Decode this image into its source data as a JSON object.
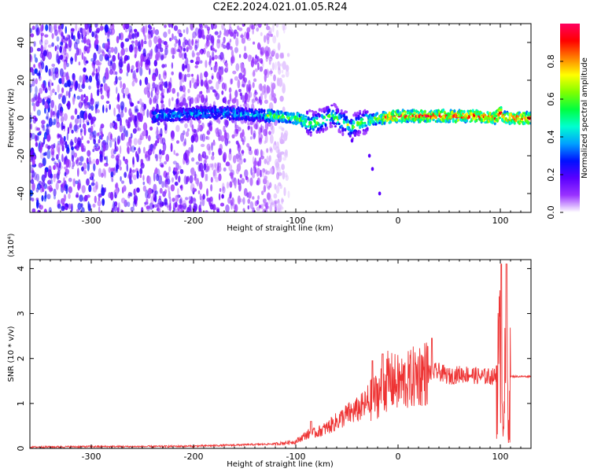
{
  "title": "C2E2.2024.021.01.05.R24",
  "chart_data": [
    {
      "type": "heatmap",
      "xlabel": "Height of straight line (km)",
      "ylabel": "Frequency (Hz)",
      "xlim": [
        -360,
        130
      ],
      "ylim": [
        -50,
        50
      ],
      "xticks": [
        "-300",
        "-200",
        "-100",
        "0",
        "100"
      ],
      "yticks": [
        "-40",
        "-20",
        "0",
        "20",
        "40"
      ],
      "colorbar": {
        "label": "Normalized spectral amplitude",
        "range": [
          0.0,
          1.0
        ],
        "ticks": [
          "0.0",
          "0.2",
          "0.4",
          "0.6",
          "0.8"
        ],
        "colors": [
          "#ffffff",
          "#9a33ff",
          "#5a00ff",
          "#0010ff",
          "#00a0ff",
          "#00ffd0",
          "#00ff40",
          "#80ff00",
          "#ffff00",
          "#ff8000",
          "#ff0000",
          "#ff0060"
        ]
      },
      "band": {
        "x": [
          -240,
          -210,
          -180,
          -150,
          -120,
          -100,
          -85,
          -75,
          -65,
          -55,
          -45,
          -35,
          -25,
          -15,
          0,
          20,
          40,
          60,
          80,
          95,
          100,
          105,
          130
        ],
        "y": [
          1,
          2,
          3,
          2,
          1,
          0,
          -3,
          -2,
          2,
          -2,
          -5,
          -2,
          -1,
          0,
          1,
          1,
          1,
          1,
          1,
          0,
          3,
          0,
          0
        ]
      },
      "noise_region_x": [
        -360,
        -140
      ]
    },
    {
      "type": "line",
      "xlabel": "Height of straight line (km)",
      "ylabel": "SNR (10 * v/v)",
      "scale_label": "(x10⁴)",
      "xlim": [
        -360,
        130
      ],
      "ylim": [
        0,
        4.2
      ],
      "xticks": [
        "-300",
        "-200",
        "-100",
        "0",
        "100"
      ],
      "yticks": [
        "0",
        "1",
        "2",
        "3",
        "4"
      ],
      "color": "#ee3333",
      "envelope": {
        "x": [
          -360,
          -300,
          -250,
          -200,
          -150,
          -120,
          -100,
          -90,
          -80,
          -70,
          -60,
          -50,
          -40,
          -30,
          -20,
          -10,
          0,
          10,
          20,
          30,
          40,
          50,
          60,
          70,
          80,
          90,
          96,
          100,
          103,
          106,
          108,
          110,
          130
        ],
        "y": [
          0.03,
          0.04,
          0.04,
          0.05,
          0.08,
          0.1,
          0.15,
          0.3,
          0.35,
          0.45,
          0.6,
          0.75,
          0.85,
          1.0,
          1.2,
          1.5,
          1.45,
          1.5,
          1.65,
          1.7,
          1.7,
          1.6,
          1.65,
          1.65,
          1.6,
          1.6,
          1.6,
          2.0,
          0.9,
          2.0,
          0.6,
          1.6,
          1.6
        ]
      },
      "peaks": [
        {
          "x": 101,
          "y": 4.1
        },
        {
          "x": 106,
          "y": 4.1
        },
        {
          "x": 33,
          "y": 2.45
        },
        {
          "x": -15,
          "y": 2.1
        },
        {
          "x": -25,
          "y": 1.95
        },
        {
          "x": -85,
          "y": 0.6
        }
      ]
    }
  ]
}
